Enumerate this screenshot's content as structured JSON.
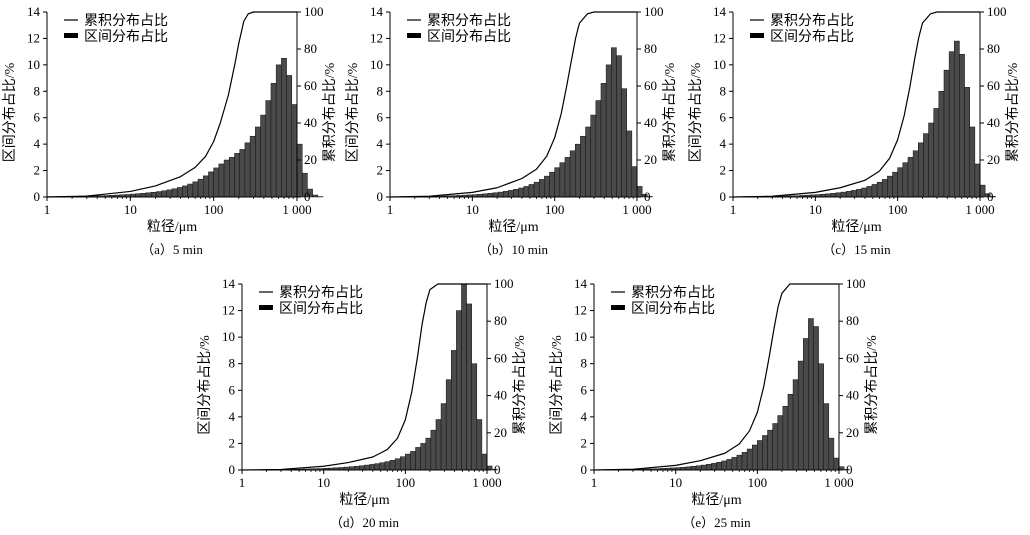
{
  "chart_data": [
    {
      "type": "bar",
      "caption": "（a）5 min",
      "xlabel": "粒径/μm",
      "ylabel_left": "区间分布占比/%",
      "ylabel_right": "累积分布占比/%",
      "x_scale": "log",
      "xlim": [
        1,
        1000
      ],
      "x_ticks": [
        "1",
        "10",
        "100",
        "1 000"
      ],
      "ylim_left": [
        0,
        14
      ],
      "y_ticks_left": [
        "0",
        "2",
        "4",
        "6",
        "8",
        "10",
        "12",
        "14"
      ],
      "ylim_right": [
        0,
        100
      ],
      "y_ticks_right": [
        "0",
        "20",
        "40",
        "60",
        "80",
        "100"
      ],
      "legend": [
        "累积分布占比",
        "区间分布占比"
      ],
      "bins": {
        "x_start": 1,
        "bins_per_decade": 16,
        "values": [
          0.03,
          0.03,
          0.04,
          0.04,
          0.05,
          0.05,
          0.06,
          0.07,
          0.08,
          0.09,
          0.1,
          0.11,
          0.13,
          0.15,
          0.17,
          0.19,
          0.22,
          0.25,
          0.28,
          0.32,
          0.36,
          0.41,
          0.47,
          0.54,
          0.62,
          0.72,
          0.84,
          0.98,
          1.15,
          1.35,
          1.6,
          1.9,
          2.2,
          2.5,
          2.8,
          3.0,
          3.3,
          3.6,
          4.1,
          4.6,
          5.3,
          6.2,
          7.3,
          8.6,
          10.0,
          10.5,
          9.2,
          7.0,
          4.0,
          1.8,
          0.6,
          0.15,
          0.03
        ]
      },
      "cumulative": {
        "x": [
          1,
          3,
          10,
          20,
          40,
          60,
          80,
          100,
          120,
          150,
          180,
          200,
          230,
          260,
          300,
          1000
        ],
        "y": [
          0,
          0.5,
          3,
          6,
          11,
          16,
          22,
          30,
          40,
          55,
          72,
          83,
          95,
          99,
          100,
          100
        ]
      }
    },
    {
      "type": "bar",
      "caption": "（b）10 min",
      "xlabel": "粒径/μm",
      "ylabel_left": "区间分布占比/%",
      "ylabel_right": "累积分布占比/%",
      "x_scale": "log",
      "xlim": [
        1,
        1000
      ],
      "x_ticks": [
        "1",
        "10",
        "100",
        "1 000"
      ],
      "ylim_left": [
        0,
        14
      ],
      "y_ticks_left": [
        "0",
        "2",
        "4",
        "6",
        "8",
        "10",
        "12",
        "14"
      ],
      "ylim_right": [
        0,
        100
      ],
      "y_ticks_right": [
        "0",
        "20",
        "40",
        "60",
        "80",
        "100"
      ],
      "legend": [
        "累积分布占比",
        "区间分布占比"
      ],
      "bins": {
        "x_start": 1,
        "bins_per_decade": 16,
        "values": [
          0.02,
          0.02,
          0.03,
          0.03,
          0.04,
          0.04,
          0.05,
          0.05,
          0.06,
          0.07,
          0.08,
          0.09,
          0.1,
          0.12,
          0.14,
          0.16,
          0.18,
          0.21,
          0.24,
          0.28,
          0.32,
          0.37,
          0.43,
          0.5,
          0.58,
          0.68,
          0.8,
          0.95,
          1.12,
          1.33,
          1.58,
          1.88,
          2.22,
          2.6,
          3.0,
          3.5,
          4.0,
          4.6,
          5.3,
          6.2,
          7.3,
          8.6,
          10.0,
          11.3,
          10.7,
          8.2,
          5.0,
          2.3,
          0.8,
          0.2,
          0.04
        ]
      },
      "cumulative": {
        "x": [
          1,
          3,
          10,
          20,
          40,
          60,
          80,
          100,
          120,
          140,
          160,
          180,
          200,
          250,
          300,
          1000
        ],
        "y": [
          0,
          0.4,
          2.5,
          5,
          10,
          15,
          22,
          32,
          45,
          60,
          74,
          86,
          94,
          99,
          100,
          100
        ]
      }
    },
    {
      "type": "bar",
      "caption": "（c）15 min",
      "xlabel": "粒径/μm",
      "ylabel_left": "区间分布占比/%",
      "ylabel_right": "累积分布占比/%",
      "x_scale": "log",
      "xlim": [
        1,
        1000
      ],
      "x_ticks": [
        "1",
        "10",
        "100",
        "1 000"
      ],
      "ylim_left": [
        0,
        14
      ],
      "y_ticks_left": [
        "0",
        "2",
        "4",
        "6",
        "8",
        "10",
        "12",
        "14"
      ],
      "ylim_right": [
        0,
        100
      ],
      "y_ticks_right": [
        "0",
        "20",
        "40",
        "60",
        "80",
        "100"
      ],
      "legend": [
        "累积分布占比",
        "区间分布占比"
      ],
      "bins": {
        "x_start": 1,
        "bins_per_decade": 16,
        "values": [
          0.02,
          0.02,
          0.03,
          0.03,
          0.04,
          0.04,
          0.05,
          0.05,
          0.06,
          0.07,
          0.08,
          0.09,
          0.1,
          0.12,
          0.14,
          0.16,
          0.18,
          0.21,
          0.24,
          0.28,
          0.32,
          0.37,
          0.43,
          0.5,
          0.58,
          0.68,
          0.8,
          0.95,
          1.12,
          1.33,
          1.58,
          1.88,
          2.22,
          2.6,
          3.0,
          3.5,
          4.1,
          4.8,
          5.6,
          6.7,
          8.0,
          9.6,
          11.0,
          11.8,
          10.8,
          8.3,
          5.3,
          2.5,
          0.9,
          0.25,
          0.05
        ]
      },
      "cumulative": {
        "x": [
          1,
          3,
          10,
          20,
          40,
          60,
          80,
          100,
          120,
          140,
          160,
          180,
          200,
          250,
          300,
          1000
        ],
        "y": [
          0,
          0.4,
          2.5,
          5,
          9,
          14,
          21,
          31,
          44,
          59,
          74,
          86,
          94,
          99,
          100,
          100
        ]
      }
    },
    {
      "type": "bar",
      "caption": "（d）20 min",
      "xlabel": "粒径/μm",
      "ylabel_left": "区间分布占比/%",
      "ylabel_right": "累积分布占比/%",
      "x_scale": "log",
      "xlim": [
        1,
        1000
      ],
      "x_ticks": [
        "1",
        "10",
        "100",
        "1 000"
      ],
      "ylim_left": [
        0,
        14
      ],
      "y_ticks_left": [
        "0",
        "2",
        "4",
        "6",
        "8",
        "10",
        "12",
        "14"
      ],
      "ylim_right": [
        0,
        100
      ],
      "y_ticks_right": [
        "0",
        "20",
        "40",
        "60",
        "80",
        "100"
      ],
      "legend": [
        "累积分布占比",
        "区间分布占比"
      ],
      "bins": {
        "x_start": 1,
        "bins_per_decade": 16,
        "values": [
          0.01,
          0.02,
          0.02,
          0.02,
          0.03,
          0.03,
          0.04,
          0.04,
          0.05,
          0.05,
          0.06,
          0.07,
          0.08,
          0.09,
          0.1,
          0.11,
          0.13,
          0.15,
          0.17,
          0.19,
          0.22,
          0.25,
          0.28,
          0.32,
          0.37,
          0.42,
          0.48,
          0.55,
          0.63,
          0.73,
          0.85,
          1.0,
          1.2,
          1.4,
          1.7,
          2.0,
          2.4,
          3.0,
          3.8,
          5.0,
          6.8,
          9.0,
          12.0,
          14.0,
          12.5,
          8.0,
          3.8,
          1.2,
          0.3,
          0.06
        ]
      },
      "cumulative": {
        "x": [
          1,
          3,
          10,
          20,
          40,
          60,
          80,
          100,
          120,
          140,
          160,
          180,
          200,
          250,
          1000
        ],
        "y": [
          0,
          0.3,
          2,
          4,
          7,
          11,
          17,
          27,
          42,
          60,
          78,
          90,
          97,
          100,
          100
        ]
      }
    },
    {
      "type": "bar",
      "caption": "（e）25 min",
      "xlabel": "粒径/μm",
      "ylabel_left": "区间分布占比/%",
      "ylabel_right": "累积分布占比/%",
      "x_scale": "log",
      "xlim": [
        1,
        1000
      ],
      "x_ticks": [
        "1",
        "10",
        "100",
        "1 000"
      ],
      "ylim_left": [
        0,
        14
      ],
      "y_ticks_left": [
        "0",
        "2",
        "4",
        "6",
        "8",
        "10",
        "12",
        "14"
      ],
      "ylim_right": [
        0,
        100
      ],
      "y_ticks_right": [
        "0",
        "20",
        "40",
        "60",
        "80",
        "100"
      ],
      "legend": [
        "累积分布占比",
        "区间分布占比"
      ],
      "bins": {
        "x_start": 1,
        "bins_per_decade": 16,
        "values": [
          0.02,
          0.02,
          0.03,
          0.03,
          0.04,
          0.04,
          0.05,
          0.05,
          0.06,
          0.07,
          0.08,
          0.09,
          0.1,
          0.12,
          0.14,
          0.16,
          0.18,
          0.21,
          0.24,
          0.28,
          0.32,
          0.37,
          0.43,
          0.5,
          0.58,
          0.68,
          0.8,
          0.95,
          1.12,
          1.33,
          1.58,
          1.88,
          2.22,
          2.6,
          3.0,
          3.5,
          4.1,
          4.8,
          5.7,
          6.8,
          8.2,
          9.9,
          11.4,
          10.8,
          8.0,
          5.0,
          2.4,
          0.9,
          0.25,
          0.05
        ]
      },
      "cumulative": {
        "x": [
          1,
          3,
          10,
          20,
          40,
          60,
          80,
          100,
          120,
          140,
          160,
          180,
          200,
          250,
          1000
        ],
        "y": [
          0,
          0.4,
          2.5,
          5,
          9,
          14,
          21,
          31,
          45,
          61,
          76,
          88,
          95,
          100,
          100
        ]
      }
    }
  ]
}
